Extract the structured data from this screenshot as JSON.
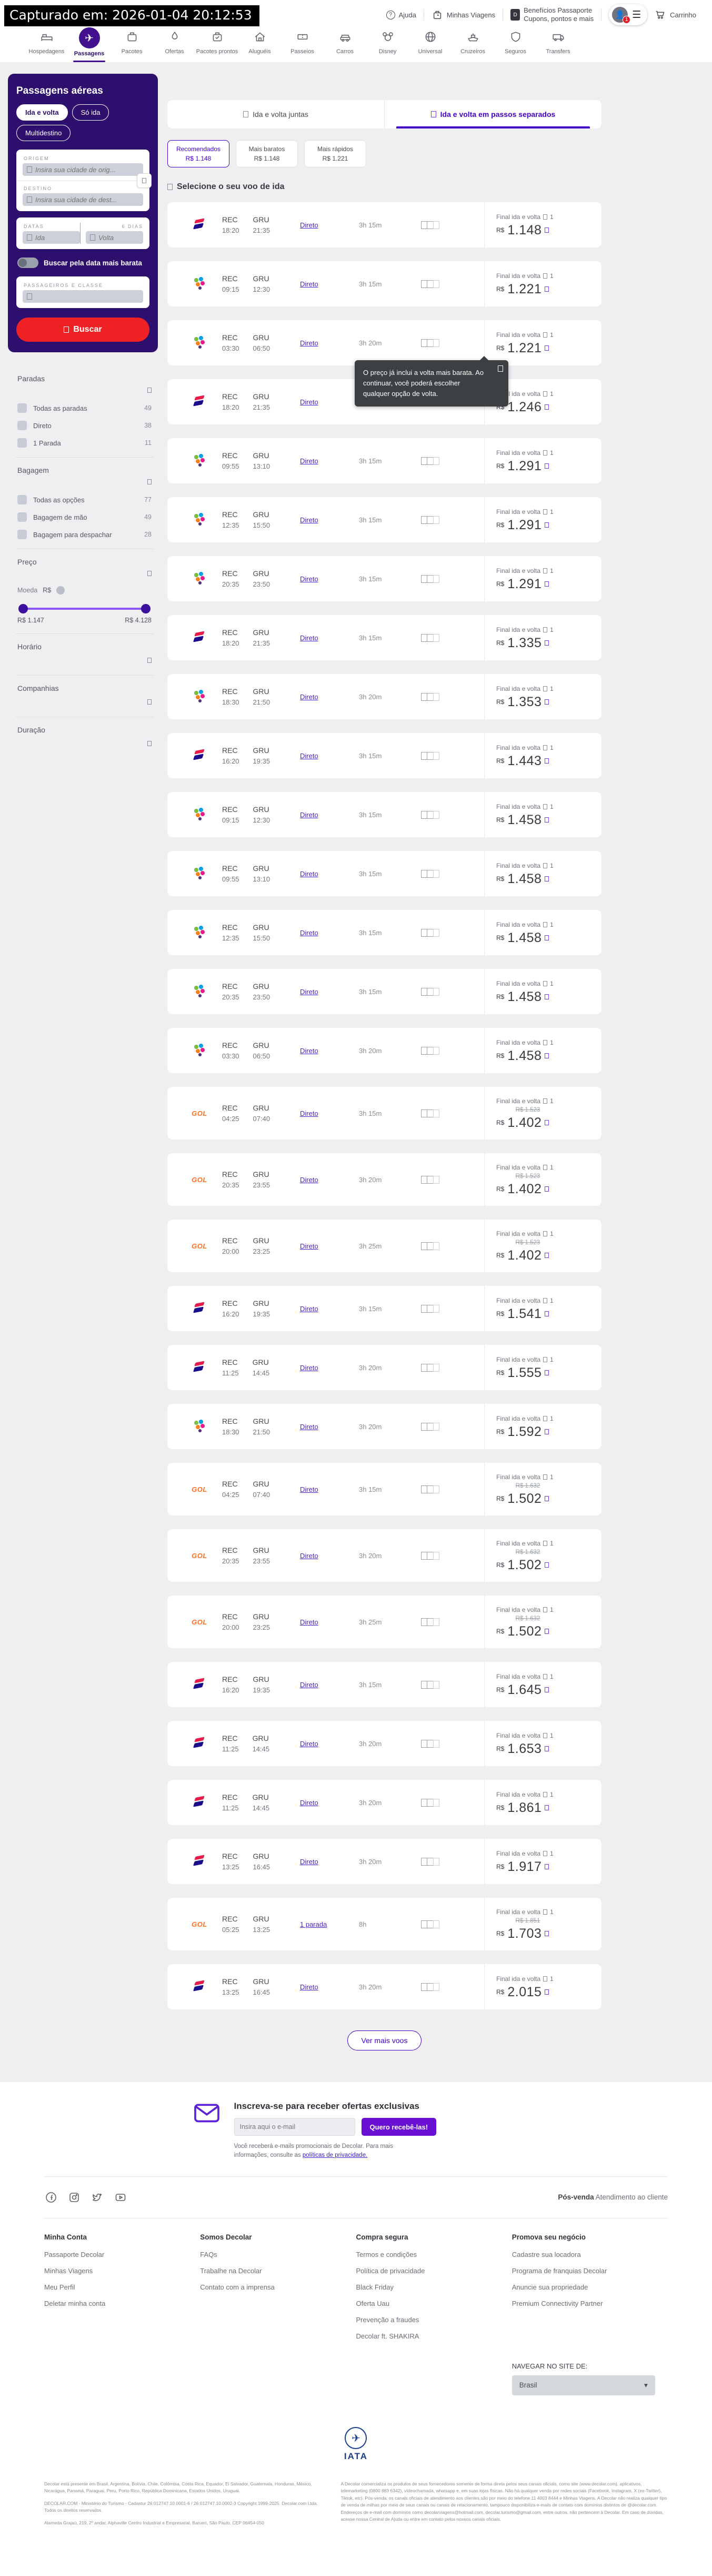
{
  "capture": {
    "text": "Capturado em: 2026-01-04 20:12:53"
  },
  "header": {
    "utilities": {
      "help": "Ajuda",
      "trips": "Minhas Viagens",
      "benefits_line1": "Benefícios Passaporte",
      "benefits_line2": "Cupons, pontos e mais",
      "account_badge": "1",
      "cart": "Carrinho"
    },
    "nav": [
      {
        "label": "Hospedagens",
        "icon": "bed",
        "active": false
      },
      {
        "label": "Passagens",
        "icon": "plane",
        "active": true
      },
      {
        "label": "Pacotes",
        "icon": "suitcase",
        "active": false
      },
      {
        "label": "Ofertas",
        "icon": "flame",
        "active": false
      },
      {
        "label": "Pacotes prontos",
        "icon": "bagcheck",
        "active": false
      },
      {
        "label": "Aluguéis",
        "icon": "house",
        "active": false
      },
      {
        "label": "Passeios",
        "icon": "ticket",
        "active": false
      },
      {
        "label": "Carros",
        "icon": "car",
        "active": false
      },
      {
        "label": "Disney",
        "icon": "mouse",
        "active": false
      },
      {
        "label": "Universal",
        "icon": "globe",
        "active": false
      },
      {
        "label": "Cruzeiros",
        "icon": "ship",
        "active": false
      },
      {
        "label": "Seguros",
        "icon": "shield",
        "active": false
      },
      {
        "label": "Transfers",
        "icon": "van",
        "active": false
      }
    ]
  },
  "search_panel": {
    "title": "Passagens aéreas",
    "trip_types": [
      {
        "label": "Ida e volta",
        "active": true
      },
      {
        "label": "Só ida",
        "active": false
      },
      {
        "label": "Multidestino",
        "active": false
      }
    ],
    "origin_label": "ORIGEM",
    "origin_placeholder": "Insira sua cidade de orig...",
    "destination_label": "DESTINO",
    "destination_placeholder": "Insira sua cidade de dest...",
    "dates_label": "DATAS",
    "dates_days": "6 DIAS",
    "date_start_placeholder": "Ida",
    "date_end_placeholder": "Volta",
    "cheapest_toggle_label": "Buscar pela data mais barata",
    "passengers_label": "PASSAGEIROS E CLASSE",
    "submit_label": "Buscar"
  },
  "filters": {
    "stops": {
      "title": "Paradas",
      "options": [
        {
          "label": "Todas as paradas",
          "count": "49"
        },
        {
          "label": "Direto",
          "count": "38"
        },
        {
          "label": "1 Parada",
          "count": "11"
        }
      ]
    },
    "baggage": {
      "title": "Bagagem",
      "options": [
        {
          "label": "Todas as opções",
          "count": "77"
        },
        {
          "label": "Bagagem de mão",
          "count": "49"
        },
        {
          "label": "Bagagem para despachar",
          "count": "28"
        }
      ]
    },
    "price": {
      "title": "Preço",
      "currency_label": "Moeda",
      "currency": "R$",
      "min": "R$ 1.147",
      "max": "R$ 4.128"
    },
    "time": {
      "title": "Horário"
    },
    "airlines": {
      "title": "Companhias"
    },
    "duration": {
      "title": "Duração"
    }
  },
  "results": {
    "tabs": [
      {
        "label": "Ida e volta juntas",
        "active": false
      },
      {
        "label": "Ida e volta em passos separados",
        "active": true
      }
    ],
    "sort_options": [
      {
        "label": "Recomendados",
        "price": "R$ 1.148",
        "active": true
      },
      {
        "label": "Mais baratos",
        "price": "R$ 1.148",
        "active": false
      },
      {
        "label": "Mais rápidos",
        "price": "R$ 1.221",
        "active": false
      }
    ],
    "heading": "Selecione o seu voo de ida",
    "route": {
      "from": "REC",
      "to": "GRU"
    },
    "final_label": "Final ida e volta",
    "pax_count": "1",
    "currency": "R$",
    "tooltip": {
      "text": "O preço já inclui a volta mais barata. Ao continuar, você poderá escolher qualquer opção de volta."
    },
    "more_button": "Ver mais voos",
    "flights": [
      {
        "airline": "latam",
        "dep": "18:20",
        "arr": "21:35",
        "stops": "Direto",
        "duration": "3h 15m",
        "price": "1.148",
        "old_price": ""
      },
      {
        "airline": "azul",
        "dep": "09:15",
        "arr": "12:30",
        "stops": "Direto",
        "duration": "3h 15m",
        "price": "1.221",
        "old_price": ""
      },
      {
        "airline": "azul",
        "dep": "03:30",
        "arr": "06:50",
        "stops": "Direto",
        "duration": "3h 20m",
        "price": "1.221",
        "old_price": ""
      },
      {
        "airline": "latam",
        "dep": "18:20",
        "arr": "21:35",
        "stops": "Direto",
        "duration": "3h 15m",
        "price": "1.246",
        "old_price": ""
      },
      {
        "airline": "azul",
        "dep": "09:55",
        "arr": "13:10",
        "stops": "Direto",
        "duration": "3h 15m",
        "price": "1.291",
        "old_price": ""
      },
      {
        "airline": "azul",
        "dep": "12:35",
        "arr": "15:50",
        "stops": "Direto",
        "duration": "3h 15m",
        "price": "1.291",
        "old_price": ""
      },
      {
        "airline": "azul",
        "dep": "20:35",
        "arr": "23:50",
        "stops": "Direto",
        "duration": "3h 15m",
        "price": "1.291",
        "old_price": ""
      },
      {
        "airline": "latam",
        "dep": "18:20",
        "arr": "21:35",
        "stops": "Direto",
        "duration": "3h 15m",
        "price": "1.335",
        "old_price": ""
      },
      {
        "airline": "azul",
        "dep": "18:30",
        "arr": "21:50",
        "stops": "Direto",
        "duration": "3h 20m",
        "price": "1.353",
        "old_price": ""
      },
      {
        "airline": "latam",
        "dep": "16:20",
        "arr": "19:35",
        "stops": "Direto",
        "duration": "3h 15m",
        "price": "1.443",
        "old_price": ""
      },
      {
        "airline": "azul",
        "dep": "09:15",
        "arr": "12:30",
        "stops": "Direto",
        "duration": "3h 15m",
        "price": "1.458",
        "old_price": ""
      },
      {
        "airline": "azul",
        "dep": "09:55",
        "arr": "13:10",
        "stops": "Direto",
        "duration": "3h 15m",
        "price": "1.458",
        "old_price": ""
      },
      {
        "airline": "azul",
        "dep": "12:35",
        "arr": "15:50",
        "stops": "Direto",
        "duration": "3h 15m",
        "price": "1.458",
        "old_price": ""
      },
      {
        "airline": "azul",
        "dep": "20:35",
        "arr": "23:50",
        "stops": "Direto",
        "duration": "3h 15m",
        "price": "1.458",
        "old_price": ""
      },
      {
        "airline": "azul",
        "dep": "03:30",
        "arr": "06:50",
        "stops": "Direto",
        "duration": "3h 20m",
        "price": "1.458",
        "old_price": ""
      },
      {
        "airline": "gol",
        "dep": "04:25",
        "arr": "07:40",
        "stops": "Direto",
        "duration": "3h 15m",
        "price": "1.402",
        "old_price": "R$ 1.523"
      },
      {
        "airline": "gol",
        "dep": "20:35",
        "arr": "23:55",
        "stops": "Direto",
        "duration": "3h 20m",
        "price": "1.402",
        "old_price": "R$ 1.523"
      },
      {
        "airline": "gol",
        "dep": "20:00",
        "arr": "23:25",
        "stops": "Direto",
        "duration": "3h 25m",
        "price": "1.402",
        "old_price": "R$ 1.523"
      },
      {
        "airline": "latam",
        "dep": "16:20",
        "arr": "19:35",
        "stops": "Direto",
        "duration": "3h 15m",
        "price": "1.541",
        "old_price": ""
      },
      {
        "airline": "latam",
        "dep": "11:25",
        "arr": "14:45",
        "stops": "Direto",
        "duration": "3h 20m",
        "price": "1.555",
        "old_price": ""
      },
      {
        "airline": "azul",
        "dep": "18:30",
        "arr": "21:50",
        "stops": "Direto",
        "duration": "3h 20m",
        "price": "1.592",
        "old_price": ""
      },
      {
        "airline": "gol",
        "dep": "04:25",
        "arr": "07:40",
        "stops": "Direto",
        "duration": "3h 15m",
        "price": "1.502",
        "old_price": "R$ 1.632"
      },
      {
        "airline": "gol",
        "dep": "20:35",
        "arr": "23:55",
        "stops": "Direto",
        "duration": "3h 20m",
        "price": "1.502",
        "old_price": "R$ 1.632"
      },
      {
        "airline": "gol",
        "dep": "20:00",
        "arr": "23:25",
        "stops": "Direto",
        "duration": "3h 25m",
        "price": "1.502",
        "old_price": "R$ 1.632"
      },
      {
        "airline": "latam",
        "dep": "16:20",
        "arr": "19:35",
        "stops": "Direto",
        "duration": "3h 15m",
        "price": "1.645",
        "old_price": ""
      },
      {
        "airline": "latam",
        "dep": "11:25",
        "arr": "14:45",
        "stops": "Direto",
        "duration": "3h 20m",
        "price": "1.653",
        "old_price": ""
      },
      {
        "airline": "latam",
        "dep": "11:25",
        "arr": "14:45",
        "stops": "Direto",
        "duration": "3h 20m",
        "price": "1.861",
        "old_price": ""
      },
      {
        "airline": "latam",
        "dep": "13:25",
        "arr": "16:45",
        "stops": "Direto",
        "duration": "3h 20m",
        "price": "1.917",
        "old_price": ""
      },
      {
        "airline": "gol",
        "dep": "05:25",
        "arr": "13:25",
        "stops": "1 parada",
        "duration": "8h",
        "price": "1.703",
        "old_price": "R$ 1.851"
      },
      {
        "airline": "latam",
        "dep": "13:25",
        "arr": "16:45",
        "stops": "Direto",
        "duration": "3h 20m",
        "price": "2.015",
        "old_price": ""
      }
    ]
  },
  "airlines": {
    "latam": {
      "name": "LATAM"
    },
    "azul": {
      "name": "Azul"
    },
    "gol": {
      "name": "GOL",
      "text": "GOL"
    }
  },
  "newsletter": {
    "title": "Inscreva-se para receber ofertas exclusivas",
    "email_placeholder": "Insira aqui o e-mail",
    "button": "Quero recebê-las!",
    "disclaimer": "Você receberá e-mails promocionais de Decolar. Para mais informações, consulte as",
    "privacy_link": "políticas de privacidade."
  },
  "footer": {
    "postsale_label": "Pós-venda",
    "postsale_link": "Atendimento ao cliente",
    "columns": [
      {
        "title": "Minha Conta",
        "links": [
          "Passaporte Decolar",
          "Minhas Viagens",
          "Meu Perfil",
          "Deletar minha conta"
        ]
      },
      {
        "title": "Somos Decolar",
        "links": [
          "FAQs",
          "Trabalhe na Decolar",
          "Contato com a imprensa"
        ]
      },
      {
        "title": "Compra segura",
        "links": [
          "Termos e condições",
          "Política de privacidade",
          "Black Friday",
          "Oferta Uau",
          "Prevenção a fraudes",
          "Decolar ft. SHAKIRA"
        ]
      },
      {
        "title": "Promova seu negócio",
        "links": [
          "Cadastre sua locadora",
          "Programa de franquias Decolar",
          "Anuncie sua propriedade",
          "Premium Connectivity Partner"
        ]
      }
    ],
    "navigate_label": "NAVEGAR NO SITE DE:",
    "country": "Brasil",
    "iata_label": "IATA"
  },
  "legal": {
    "left1": "Decolar está presente em Brasil, Argentina, Bolívia, Chile, Colômbia, Costa Rica, Equador, El Salvador, Guatemala, Honduras, México, Nicarágua, Panamá, Paraguai, Peru, Porto Rico, República Dominicana, Estados Unidos, Uruguai.",
    "left2": "DECOLAR.COM - Ministério do Turismo - Cadastur 26.012747.10.0001-6 / 26.012747.10.0002-3 Copyright 1999-2025. Decolar.com Ltda. Todos os direitos reservados.",
    "left3": "Alameda Grajaú, 219, 2º andar, Alphaville Centro Industrial e Empresarial, Barueri, São Paulo, CEP 06454-050",
    "right": "A Decolar comercializa os produtos de seus fornecedores somente de forma direta pelos seus canais oficiais, como site (www.decolar.com), aplicativos, telemarketing (0800 883 6342), vídeochamada, whatsapp e, em suas lojas físicas. Não há qualquer venda por redes sociais (Facebook, Instagram, X (ex-Twitter), Tiktok, etc). Pós-venda: os canais oficiais de atendimento aos clientes são por meio do telefone 11 4003 8444 e Minhas Viagens. A Decolar não realiza qualquer tipo de venda de milhas por meio de seus canais ou canais de relacionamento, tampouco disponibiliza e-mails de contato com domínios distintos de @decolar.com. Endereços de e-mail com domínios como decolarviagens@hotmail.com, decolar.turismo@gmail.com, entre outros, não pertencem à Decolar. Em caso de dúvidas, acesse nossa Central de Ajuda ou entre em contato pelos nossos canais oficiais."
  }
}
